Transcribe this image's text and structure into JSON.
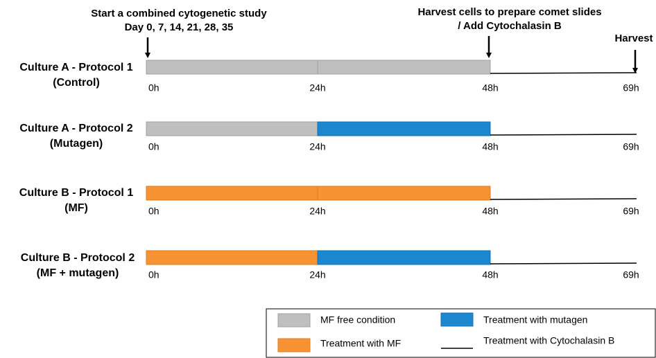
{
  "annotations": {
    "start": [
      "Start a combined cytogenetic study",
      "Day 0, 7, 14, 21, 28, 35"
    ],
    "comet": [
      "Harvest cells to prepare comet slides",
      "/ Add Cytochalasin B"
    ],
    "harvest": "Harvest"
  },
  "rows": [
    {
      "label": [
        "Culture A - Protocol 1",
        "(Control)"
      ],
      "times": [
        "0h",
        "24h",
        "48h",
        "69h"
      ]
    },
    {
      "label": [
        "Culture A - Protocol 2",
        "(Mutagen)"
      ],
      "times": [
        "0h",
        "24h",
        "48h",
        "69h"
      ]
    },
    {
      "label": [
        "Culture B - Protocol 1",
        "(MF)"
      ],
      "times": [
        "0h",
        "24h",
        "48h",
        "69h"
      ]
    },
    {
      "label": [
        "Culture B - Protocol 2",
        "(MF + mutagen)"
      ],
      "times": [
        "0h",
        "24h",
        "48h",
        "69h"
      ]
    }
  ],
  "legend": [
    "MF free condition",
    "Treatment with mutagen",
    "Treatment with MF",
    "Treatment with Cytochalasin B"
  ]
}
